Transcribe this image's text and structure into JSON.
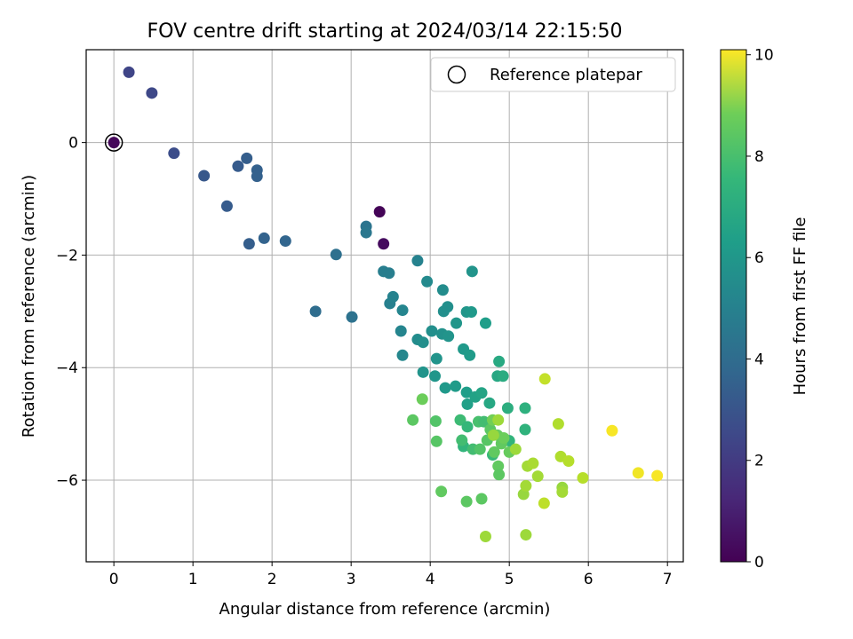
{
  "chart_data": {
    "type": "scatter",
    "title": "FOV centre drift starting at 2024/03/14 22:15:50",
    "xlabel": "Angular distance from reference (arcmin)",
    "ylabel": "Rotation from reference (arcmin)",
    "xlim": [
      -0.35,
      7.2
    ],
    "ylim": [
      -7.45,
      1.65
    ],
    "xticks": [
      0,
      1,
      2,
      3,
      4,
      5,
      6,
      7
    ],
    "yticks": [
      0,
      -2,
      -4,
      -6
    ],
    "grid": true,
    "legend": {
      "placement": "upper right",
      "entries": [
        "Reference platepar"
      ]
    },
    "colorbar": {
      "label": "Hours from first FF file",
      "colormap": "viridis",
      "min": 0,
      "max": 10.1,
      "ticks": [
        0,
        2,
        4,
        6,
        8,
        10
      ]
    },
    "reference_point": {
      "x": 0,
      "y": 0
    },
    "points": [
      {
        "x": 0.0,
        "y": 0.0,
        "c": 0.2
      },
      {
        "x": 0.19,
        "y": 1.25,
        "c": 2.1
      },
      {
        "x": 0.48,
        "y": 0.88,
        "c": 2.2
      },
      {
        "x": 0.76,
        "y": -0.19,
        "c": 2.4
      },
      {
        "x": 1.14,
        "y": -0.59,
        "c": 2.8
      },
      {
        "x": 1.43,
        "y": -1.13,
        "c": 2.9
      },
      {
        "x": 1.57,
        "y": -0.42,
        "c": 2.9
      },
      {
        "x": 1.68,
        "y": -0.28,
        "c": 3.0
      },
      {
        "x": 1.71,
        "y": -1.8,
        "c": 3.0
      },
      {
        "x": 1.81,
        "y": -0.49,
        "c": 3.1
      },
      {
        "x": 1.81,
        "y": -0.6,
        "c": 3.1
      },
      {
        "x": 1.9,
        "y": -1.7,
        "c": 3.2
      },
      {
        "x": 2.17,
        "y": -1.75,
        "c": 3.3
      },
      {
        "x": 2.55,
        "y": -3.0,
        "c": 3.6
      },
      {
        "x": 2.81,
        "y": -1.99,
        "c": 3.7
      },
      {
        "x": 3.01,
        "y": -3.1,
        "c": 3.8
      },
      {
        "x": 3.19,
        "y": -1.49,
        "c": 3.9
      },
      {
        "x": 3.19,
        "y": -1.6,
        "c": 4.0
      },
      {
        "x": 3.36,
        "y": -1.23,
        "c": 0.1
      },
      {
        "x": 3.41,
        "y": -1.8,
        "c": 0.3
      },
      {
        "x": 3.41,
        "y": -2.29,
        "c": 4.3
      },
      {
        "x": 3.48,
        "y": -2.32,
        "c": 4.3
      },
      {
        "x": 3.49,
        "y": -2.86,
        "c": 4.4
      },
      {
        "x": 3.53,
        "y": -2.74,
        "c": 4.5
      },
      {
        "x": 3.63,
        "y": -3.35,
        "c": 4.6
      },
      {
        "x": 3.65,
        "y": -3.78,
        "c": 4.7
      },
      {
        "x": 3.65,
        "y": -2.98,
        "c": 4.6
      },
      {
        "x": 3.84,
        "y": -3.5,
        "c": 4.9
      },
      {
        "x": 3.84,
        "y": -2.1,
        "c": 4.5
      },
      {
        "x": 3.91,
        "y": -3.55,
        "c": 5.0
      },
      {
        "x": 3.91,
        "y": -4.08,
        "c": 5.2
      },
      {
        "x": 3.96,
        "y": -2.47,
        "c": 4.8
      },
      {
        "x": 4.02,
        "y": -3.35,
        "c": 5.0
      },
      {
        "x": 4.06,
        "y": -4.15,
        "c": 5.3
      },
      {
        "x": 4.08,
        "y": -3.84,
        "c": 5.2
      },
      {
        "x": 4.15,
        "y": -3.4,
        "c": 5.1
      },
      {
        "x": 4.16,
        "y": -2.62,
        "c": 4.9
      },
      {
        "x": 4.17,
        "y": -3.0,
        "c": 5.0
      },
      {
        "x": 4.19,
        "y": -4.36,
        "c": 5.4
      },
      {
        "x": 4.22,
        "y": -2.92,
        "c": 5.0
      },
      {
        "x": 4.23,
        "y": -3.44,
        "c": 5.2
      },
      {
        "x": 4.32,
        "y": -4.33,
        "c": 5.5
      },
      {
        "x": 4.33,
        "y": -3.21,
        "c": 5.3
      },
      {
        "x": 4.42,
        "y": -3.67,
        "c": 5.4
      },
      {
        "x": 4.46,
        "y": -3.01,
        "c": 5.3
      },
      {
        "x": 4.46,
        "y": -4.44,
        "c": 5.6
      },
      {
        "x": 4.47,
        "y": -4.65,
        "c": 5.7
      },
      {
        "x": 4.5,
        "y": -3.78,
        "c": 5.5
      },
      {
        "x": 4.52,
        "y": -3.01,
        "c": 5.4
      },
      {
        "x": 4.53,
        "y": -2.29,
        "c": 5.2
      },
      {
        "x": 4.57,
        "y": -4.52,
        "c": 5.8
      },
      {
        "x": 4.65,
        "y": -4.45,
        "c": 5.9
      },
      {
        "x": 4.7,
        "y": -3.21,
        "c": 5.6
      },
      {
        "x": 4.75,
        "y": -4.63,
        "c": 6.0
      },
      {
        "x": 4.85,
        "y": -4.15,
        "c": 6.0
      },
      {
        "x": 4.87,
        "y": -3.89,
        "c": 6.1
      },
      {
        "x": 4.92,
        "y": -4.15,
        "c": 6.2
      },
      {
        "x": 4.98,
        "y": -4.72,
        "c": 6.3
      },
      {
        "x": 5.2,
        "y": -4.72,
        "c": 6.4
      },
      {
        "x": 5.2,
        "y": -5.1,
        "c": 6.5
      },
      {
        "x": 5.0,
        "y": -5.3,
        "c": 6.6
      },
      {
        "x": 4.79,
        "y": -5.55,
        "c": 6.8
      },
      {
        "x": 4.42,
        "y": -5.4,
        "c": 6.6
      },
      {
        "x": 4.38,
        "y": -4.93,
        "c": 6.9
      },
      {
        "x": 4.4,
        "y": -5.29,
        "c": 7.0
      },
      {
        "x": 4.47,
        "y": -5.05,
        "c": 6.7
      },
      {
        "x": 4.54,
        "y": -5.45,
        "c": 7.0
      },
      {
        "x": 4.61,
        "y": -4.96,
        "c": 7.1
      },
      {
        "x": 4.63,
        "y": -5.45,
        "c": 7.3
      },
      {
        "x": 4.68,
        "y": -4.96,
        "c": 7.0
      },
      {
        "x": 4.72,
        "y": -5.29,
        "c": 7.4
      },
      {
        "x": 4.76,
        "y": -5.1,
        "c": 7.5
      },
      {
        "x": 4.81,
        "y": -5.5,
        "c": 7.6
      },
      {
        "x": 4.85,
        "y": -5.2,
        "c": 7.7
      },
      {
        "x": 4.86,
        "y": -5.75,
        "c": 7.6
      },
      {
        "x": 4.87,
        "y": -5.9,
        "c": 7.5
      },
      {
        "x": 4.9,
        "y": -5.35,
        "c": 7.6
      },
      {
        "x": 4.93,
        "y": -5.25,
        "c": 7.8
      },
      {
        "x": 5.0,
        "y": -5.5,
        "c": 7.7
      },
      {
        "x": 4.79,
        "y": -4.93,
        "c": 7.9
      },
      {
        "x": 4.07,
        "y": -4.95,
        "c": 7.3
      },
      {
        "x": 4.08,
        "y": -5.31,
        "c": 7.4
      },
      {
        "x": 3.9,
        "y": -4.56,
        "c": 7.8
      },
      {
        "x": 3.78,
        "y": -4.93,
        "c": 7.5
      },
      {
        "x": 4.14,
        "y": -6.2,
        "c": 7.6
      },
      {
        "x": 4.46,
        "y": -6.38,
        "c": 7.5
      },
      {
        "x": 4.65,
        "y": -6.33,
        "c": 7.5
      },
      {
        "x": 4.7,
        "y": -7.0,
        "c": 8.6
      },
      {
        "x": 4.8,
        "y": -5.2,
        "c": 8.5
      },
      {
        "x": 4.86,
        "y": -4.93,
        "c": 8.6
      },
      {
        "x": 5.08,
        "y": -5.45,
        "c": 8.6
      },
      {
        "x": 5.18,
        "y": -6.25,
        "c": 8.5
      },
      {
        "x": 5.21,
        "y": -6.1,
        "c": 8.7
      },
      {
        "x": 5.21,
        "y": -6.97,
        "c": 8.6
      },
      {
        "x": 5.23,
        "y": -5.75,
        "c": 8.7
      },
      {
        "x": 5.3,
        "y": -5.7,
        "c": 8.8
      },
      {
        "x": 5.36,
        "y": -5.93,
        "c": 8.7
      },
      {
        "x": 5.44,
        "y": -6.41,
        "c": 9.1
      },
      {
        "x": 5.45,
        "y": -4.2,
        "c": 9.2
      },
      {
        "x": 5.62,
        "y": -5.0,
        "c": 8.9
      },
      {
        "x": 5.65,
        "y": -5.58,
        "c": 8.9
      },
      {
        "x": 5.67,
        "y": -6.13,
        "c": 8.5
      },
      {
        "x": 5.67,
        "y": -6.21,
        "c": 8.7
      },
      {
        "x": 5.75,
        "y": -5.66,
        "c": 9.0
      },
      {
        "x": 5.93,
        "y": -5.96,
        "c": 9.0
      },
      {
        "x": 6.3,
        "y": -5.12,
        "c": 10.0
      },
      {
        "x": 6.63,
        "y": -5.87,
        "c": 9.9
      },
      {
        "x": 6.87,
        "y": -5.92,
        "c": 10.0
      }
    ]
  }
}
